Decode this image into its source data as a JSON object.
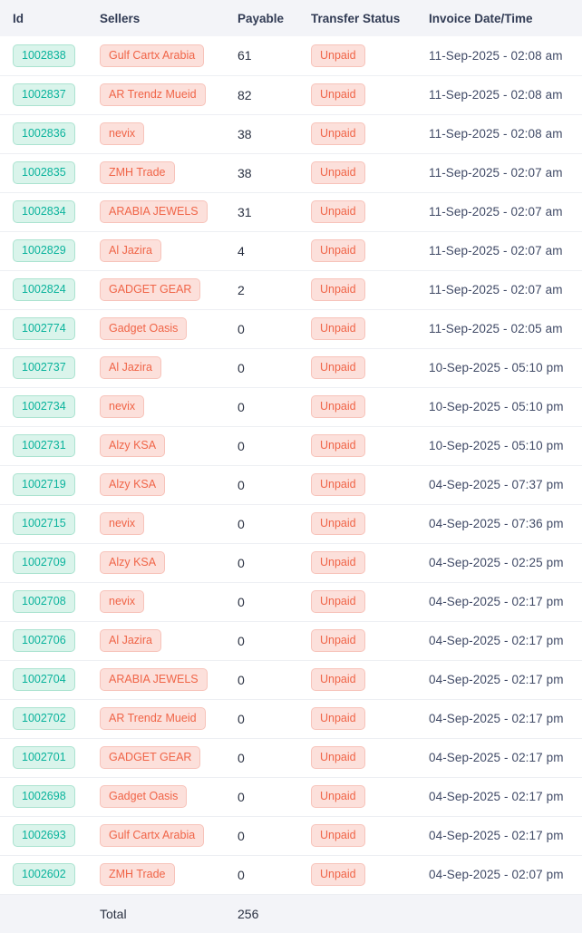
{
  "colors": {
    "header_bg": "#f3f4f8",
    "heading_text": "#313b54",
    "row_border": "#edeff3",
    "success_text": "#0ab39c",
    "success_bg": "#daf4eb",
    "success_border": "#abe3d0",
    "danger_text": "#f06548",
    "danger_bg": "#fce0db",
    "danger_border": "#f7c3ba",
    "body_text": "#404a66",
    "body_dark": "#2a3142"
  },
  "table": {
    "columns": [
      {
        "key": "id",
        "label": "Id"
      },
      {
        "key": "seller",
        "label": "Sellers"
      },
      {
        "key": "payable",
        "label": "Payable"
      },
      {
        "key": "status",
        "label": "Transfer Status"
      },
      {
        "key": "datetime",
        "label": "Invoice Date/Time"
      }
    ],
    "rows": [
      {
        "id": "1002838",
        "seller": "Gulf Cartx Arabia",
        "payable": "61",
        "status": "Unpaid",
        "datetime": "11-Sep-2025 - 02:08 am"
      },
      {
        "id": "1002837",
        "seller": "AR Trendz Mueid",
        "payable": "82",
        "status": "Unpaid",
        "datetime": "11-Sep-2025 - 02:08 am"
      },
      {
        "id": "1002836",
        "seller": "nevix",
        "payable": "38",
        "status": "Unpaid",
        "datetime": "11-Sep-2025 - 02:08 am"
      },
      {
        "id": "1002835",
        "seller": "ZMH Trade",
        "payable": "38",
        "status": "Unpaid",
        "datetime": "11-Sep-2025 - 02:07 am"
      },
      {
        "id": "1002834",
        "seller": "ARABIA JEWELS",
        "payable": "31",
        "status": "Unpaid",
        "datetime": "11-Sep-2025 - 02:07 am"
      },
      {
        "id": "1002829",
        "seller": "Al Jazira",
        "payable": "4",
        "status": "Unpaid",
        "datetime": "11-Sep-2025 - 02:07 am"
      },
      {
        "id": "1002824",
        "seller": "GADGET GEAR",
        "payable": "2",
        "status": "Unpaid",
        "datetime": "11-Sep-2025 - 02:07 am"
      },
      {
        "id": "1002774",
        "seller": "Gadget Oasis",
        "payable": "0",
        "status": "Unpaid",
        "datetime": "11-Sep-2025 - 02:05 am"
      },
      {
        "id": "1002737",
        "seller": "Al Jazira",
        "payable": "0",
        "status": "Unpaid",
        "datetime": "10-Sep-2025 - 05:10 pm"
      },
      {
        "id": "1002734",
        "seller": "nevix",
        "payable": "0",
        "status": "Unpaid",
        "datetime": "10-Sep-2025 - 05:10 pm"
      },
      {
        "id": "1002731",
        "seller": "Alzy KSA",
        "payable": "0",
        "status": "Unpaid",
        "datetime": "10-Sep-2025 - 05:10 pm"
      },
      {
        "id": "1002719",
        "seller": "Alzy KSA",
        "payable": "0",
        "status": "Unpaid",
        "datetime": "04-Sep-2025 - 07:37 pm"
      },
      {
        "id": "1002715",
        "seller": "nevix",
        "payable": "0",
        "status": "Unpaid",
        "datetime": "04-Sep-2025 - 07:36 pm"
      },
      {
        "id": "1002709",
        "seller": "Alzy KSA",
        "payable": "0",
        "status": "Unpaid",
        "datetime": "04-Sep-2025 - 02:25 pm"
      },
      {
        "id": "1002708",
        "seller": "nevix",
        "payable": "0",
        "status": "Unpaid",
        "datetime": "04-Sep-2025 - 02:17 pm"
      },
      {
        "id": "1002706",
        "seller": "Al Jazira",
        "payable": "0",
        "status": "Unpaid",
        "datetime": "04-Sep-2025 - 02:17 pm"
      },
      {
        "id": "1002704",
        "seller": "ARABIA JEWELS",
        "payable": "0",
        "status": "Unpaid",
        "datetime": "04-Sep-2025 - 02:17 pm"
      },
      {
        "id": "1002702",
        "seller": "AR Trendz Mueid",
        "payable": "0",
        "status": "Unpaid",
        "datetime": "04-Sep-2025 - 02:17 pm"
      },
      {
        "id": "1002701",
        "seller": "GADGET GEAR",
        "payable": "0",
        "status": "Unpaid",
        "datetime": "04-Sep-2025 - 02:17 pm"
      },
      {
        "id": "1002698",
        "seller": "Gadget Oasis",
        "payable": "0",
        "status": "Unpaid",
        "datetime": "04-Sep-2025 - 02:17 pm"
      },
      {
        "id": "1002693",
        "seller": "Gulf Cartx Arabia",
        "payable": "0",
        "status": "Unpaid",
        "datetime": "04-Sep-2025 - 02:17 pm"
      },
      {
        "id": "1002602",
        "seller": "ZMH Trade",
        "payable": "0",
        "status": "Unpaid",
        "datetime": "04-Sep-2025 - 02:07 pm"
      }
    ],
    "footer": {
      "label": "Total",
      "payable": "256"
    }
  }
}
